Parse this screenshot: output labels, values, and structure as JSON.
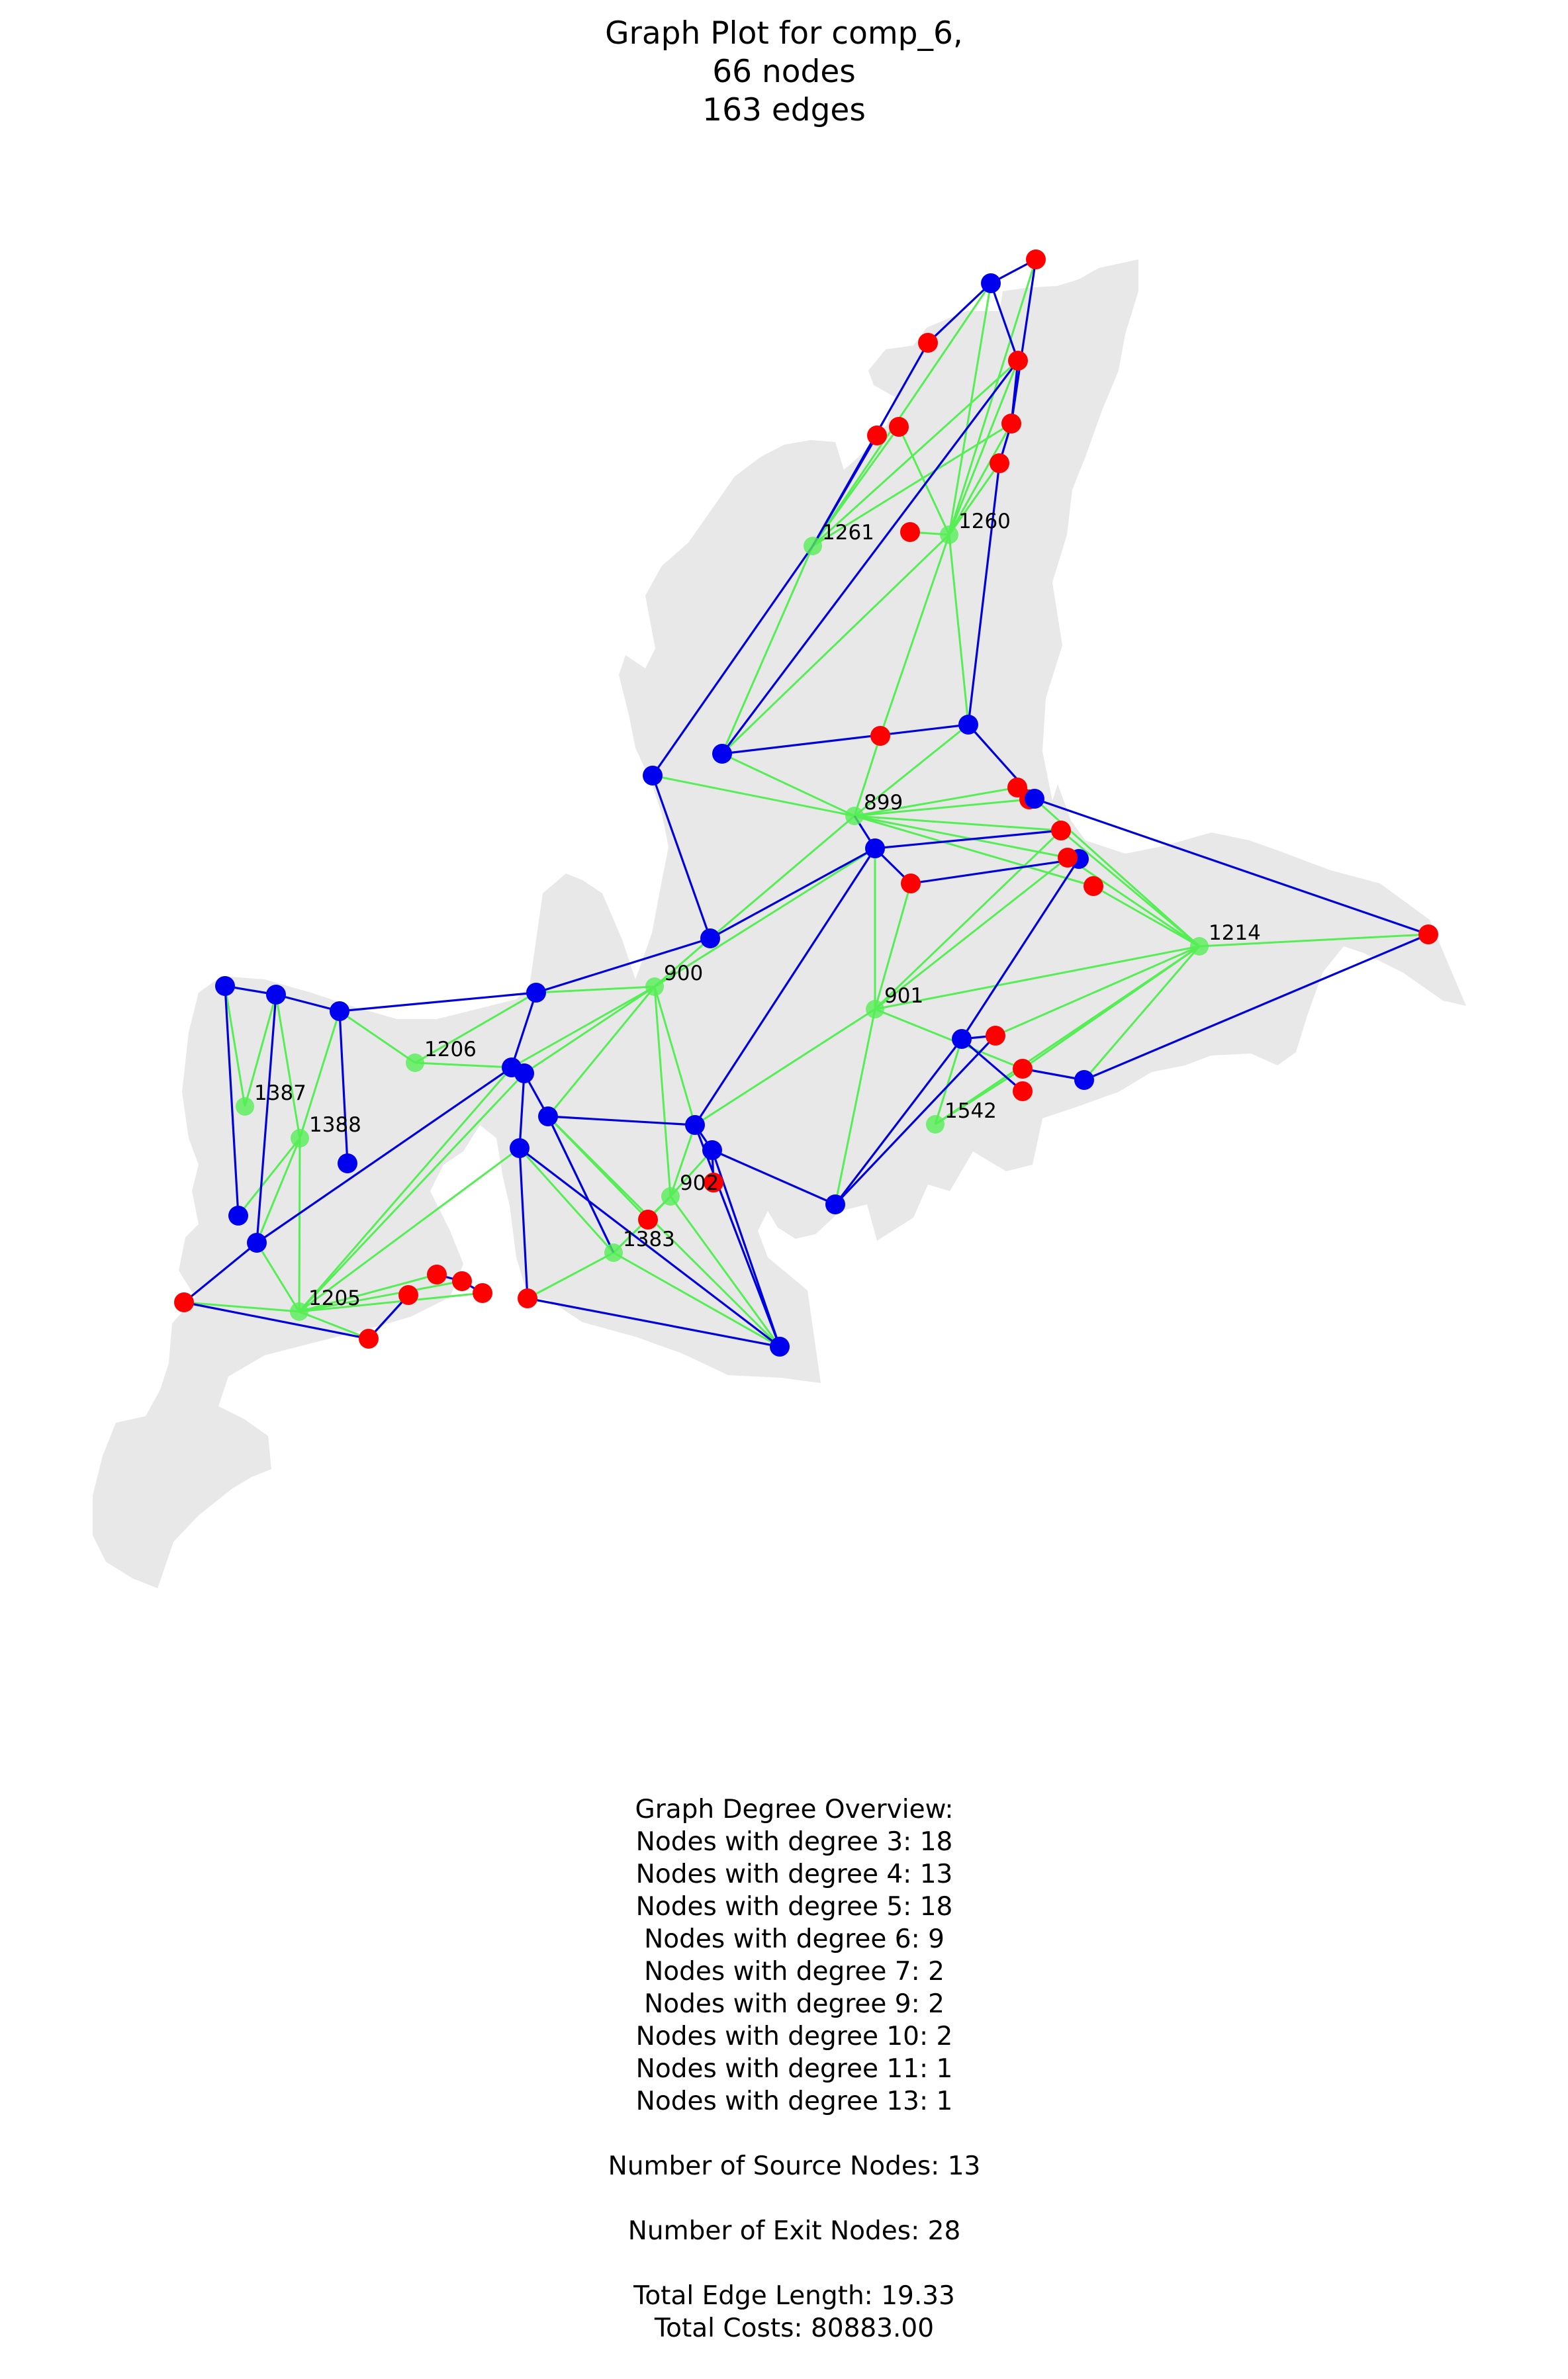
{
  "title": {
    "line1": "Graph Plot for comp_6,",
    "line2": "66 nodes",
    "line3": "163 edges"
  },
  "colors": {
    "land": "#e8e8e8",
    "source_edge": "#0000dd",
    "green_edge": "#55ee55",
    "blue_node": "#0000ee",
    "red_node": "#ff0000",
    "green_node": "#55ee55"
  },
  "labeled_nodes": [
    "1261",
    "1260",
    "899",
    "1214",
    "900",
    "901",
    "1206",
    "1387",
    "1388",
    "1542",
    "902",
    "1383",
    "1205"
  ],
  "overview": {
    "heading": "Graph Degree Overview:",
    "degree_lines": [
      "Nodes with degree 3: 18",
      "Nodes with degree 4: 13",
      "Nodes with degree 5: 18",
      "Nodes with degree 6: 9",
      "Nodes with degree 7: 2",
      "Nodes with degree 9: 2",
      "Nodes with degree 10: 2",
      "Nodes with degree 11: 1",
      "Nodes with degree 13: 1"
    ],
    "source_nodes": "Number of Source Nodes: 13",
    "exit_nodes": "Number of Exit Nodes: 28",
    "edge_length": "Total Edge Length: 19.33",
    "costs": "Total Costs: 80883.00"
  }
}
